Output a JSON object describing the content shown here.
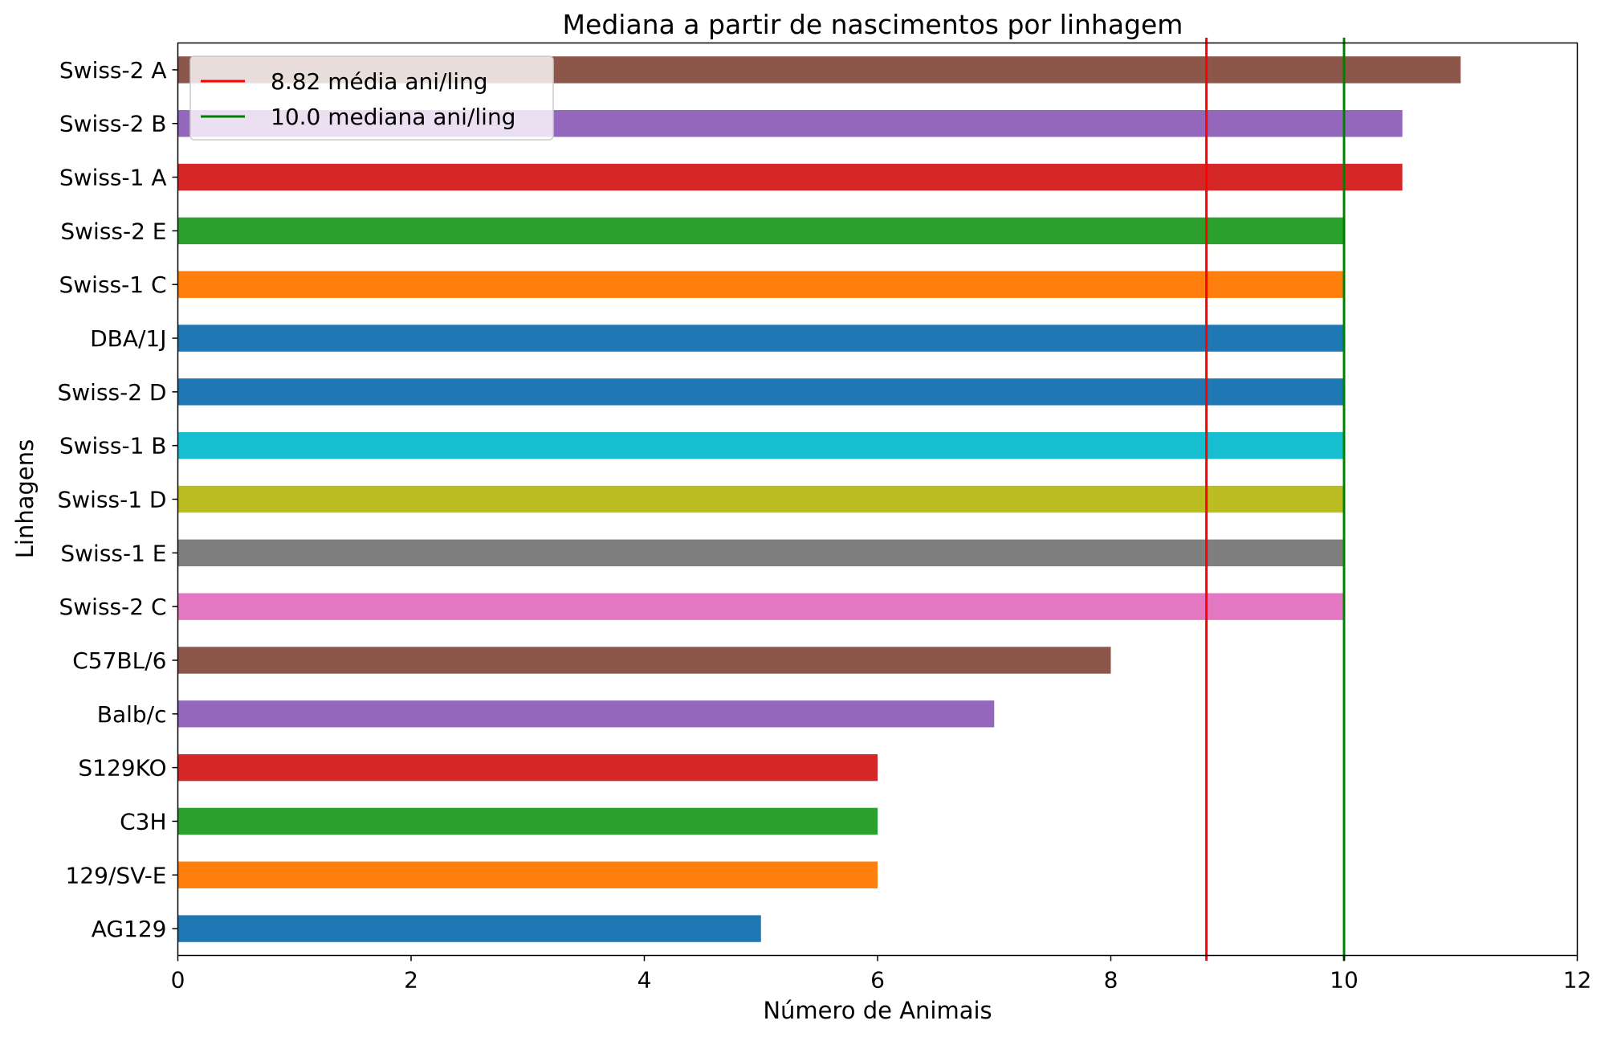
{
  "chart_data": {
    "type": "bar",
    "orientation": "horizontal",
    "title": "Mediana a partir de nascimentos por linhagem",
    "xlabel": "Número de Animais",
    "ylabel": "Linhagens",
    "xlim": [
      0,
      12
    ],
    "xticks": [
      0,
      2,
      4,
      6,
      8,
      10,
      12
    ],
    "grid": false,
    "legend_position": "top-left",
    "categories": [
      "Swiss-2 A",
      "Swiss-2 B",
      "Swiss-1 A",
      "Swiss-2 E",
      "Swiss-1 C",
      "DBA/1J",
      "Swiss-2 D",
      "Swiss-1 B",
      "Swiss-1 D",
      "Swiss-1 E",
      "Swiss-2 C",
      "C57BL/6",
      "Balb/c",
      "S129KO",
      "C3H",
      "129/SV-E",
      "AG129"
    ],
    "values": [
      11,
      10.5,
      10.5,
      10,
      10,
      10,
      10,
      10,
      10,
      10,
      10,
      8,
      7,
      6,
      6,
      6,
      5
    ],
    "bar_colors": [
      "#8c564b",
      "#9467bd",
      "#d62728",
      "#2ca02c",
      "#ff7f0e",
      "#1f77b4",
      "#1f77b4",
      "#17becf",
      "#bcbd22",
      "#7f7f7f",
      "#e377c2",
      "#8c564b",
      "#9467bd",
      "#d62728",
      "#2ca02c",
      "#ff7f0e",
      "#1f77b4"
    ],
    "reference_lines": [
      {
        "label": "8.82 média ani/ling",
        "value": 8.82,
        "color": "#ff0000"
      },
      {
        "label": "10.0 mediana ani/ling",
        "value": 10.0,
        "color": "#008000"
      }
    ]
  }
}
